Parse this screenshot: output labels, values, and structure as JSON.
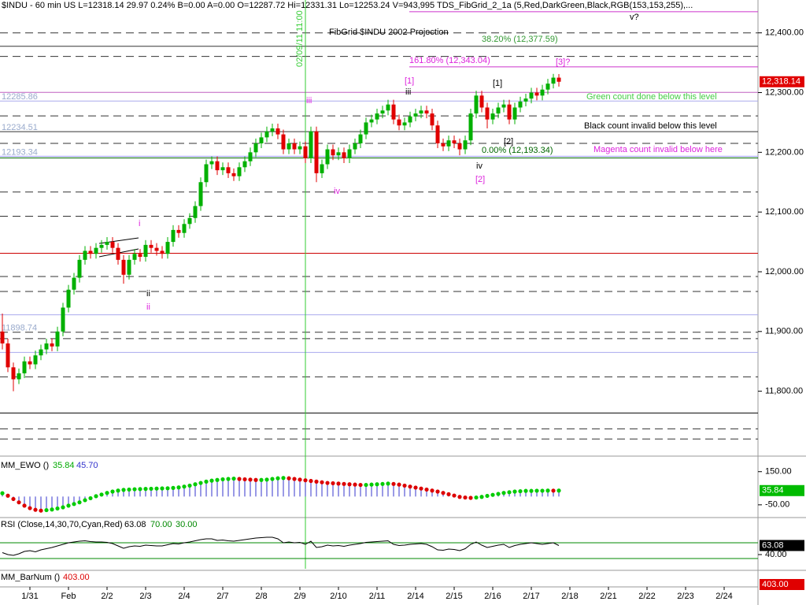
{
  "chart_data": [
    {
      "type": "candlestick",
      "title": "$INDU - 60 min  US  L=12318.14  29.97  0.24%  B=0.00  A=0.00  O=12287.72  Hi=12331.31  Lo=12253.24  V=943,995  TDS_FibGrid_2_1a (5,Red,DarkGreen,Black,RGB(153,153,255),...",
      "open": [
        11900,
        11880,
        11840,
        11820,
        11830,
        11850,
        11845,
        11860,
        11870,
        11880,
        11875,
        11900,
        11940,
        11970,
        11990,
        12020,
        12035,
        12030,
        12040,
        12045,
        12050,
        12040,
        12020,
        11995,
        12020,
        12030,
        12025,
        12045,
        12040,
        12035,
        12030,
        12050,
        12070,
        12065,
        12080,
        12090,
        12110,
        12150,
        12180,
        12185,
        12170,
        12175,
        12165,
        12160,
        12175,
        12185,
        12200,
        12215,
        12225,
        12235,
        12240,
        12230,
        12205,
        12215,
        12205,
        12210,
        12190,
        12235,
        12165,
        12180,
        12205,
        12195,
        12200,
        12190,
        12205,
        12215,
        12230,
        12250,
        12255,
        12265,
        12270,
        12280,
        12255,
        12245,
        12250,
        12260,
        12265,
        12270,
        12265,
        12245,
        12215,
        12210,
        12220,
        12215,
        12205,
        12220,
        12265,
        12295,
        12275,
        12255,
        12265,
        12275,
        12280,
        12255,
        12275,
        12285,
        12290,
        12300,
        12295,
        12305,
        12315,
        12325
      ],
      "high": [
        11930,
        11888,
        11848,
        11838,
        11858,
        11858,
        11868,
        11878,
        11888,
        11888,
        11908,
        11948,
        11978,
        11998,
        12028,
        12043,
        12043,
        12048,
        12053,
        12058,
        12058,
        12048,
        12028,
        12028,
        12038,
        12038,
        12053,
        12053,
        12048,
        12043,
        12058,
        12078,
        12078,
        12088,
        12098,
        12118,
        12158,
        12188,
        12193,
        12193,
        12183,
        12183,
        12173,
        12183,
        12193,
        12208,
        12223,
        12233,
        12243,
        12248,
        12248,
        12238,
        12223,
        12223,
        12218,
        12218,
        12243,
        12243,
        12188,
        12213,
        12213,
        12208,
        12208,
        12213,
        12223,
        12238,
        12258,
        12263,
        12273,
        12278,
        12288,
        12288,
        12263,
        12258,
        12268,
        12273,
        12278,
        12278,
        12273,
        12253,
        12223,
        12228,
        12228,
        12223,
        12228,
        12273,
        12303,
        12303,
        12283,
        12273,
        12283,
        12288,
        12288,
        12283,
        12293,
        12298,
        12308,
        12308,
        12313,
        12323,
        12331.31,
        12331
      ],
      "low": [
        11870,
        11832,
        11800,
        11812,
        11822,
        11837,
        11837,
        11852,
        11862,
        11867,
        11867,
        11892,
        11932,
        11962,
        11982,
        12012,
        12022,
        12022,
        12032,
        12037,
        12032,
        12012,
        11980,
        11987,
        12012,
        12017,
        12017,
        12032,
        12027,
        12022,
        12022,
        12042,
        12057,
        12057,
        12072,
        12082,
        12102,
        12142,
        12172,
        12162,
        12162,
        12157,
        12152,
        12152,
        12167,
        12177,
        12192,
        12207,
        12217,
        12227,
        12222,
        12197,
        12197,
        12197,
        12197,
        12182,
        12182,
        12150,
        12157,
        12172,
        12187,
        12187,
        12182,
        12182,
        12197,
        12207,
        12222,
        12242,
        12247,
        12257,
        12262,
        12247,
        12237,
        12237,
        12242,
        12252,
        12257,
        12257,
        12237,
        12207,
        12202,
        12202,
        12207,
        12195,
        12197,
        12212,
        12257,
        12267,
        12240,
        12247,
        12257,
        12267,
        12247,
        12247,
        12267,
        12277,
        12282,
        12287,
        12287,
        12297,
        12307,
        12310
      ],
      "close": [
        11880,
        11840,
        11820,
        11830,
        11850,
        11845,
        11860,
        11870,
        11880,
        11875,
        11900,
        11940,
        11970,
        11990,
        12020,
        12035,
        12030,
        12040,
        12045,
        12050,
        12040,
        12020,
        11995,
        12020,
        12030,
        12025,
        12045,
        12040,
        12035,
        12030,
        12050,
        12070,
        12065,
        12080,
        12090,
        12110,
        12150,
        12180,
        12185,
        12170,
        12175,
        12165,
        12160,
        12175,
        12185,
        12200,
        12215,
        12225,
        12235,
        12240,
        12230,
        12205,
        12215,
        12205,
        12210,
        12190,
        12235,
        12165,
        12180,
        12205,
        12195,
        12200,
        12190,
        12205,
        12215,
        12230,
        12250,
        12255,
        12265,
        12270,
        12280,
        12255,
        12245,
        12250,
        12260,
        12265,
        12270,
        12265,
        12245,
        12215,
        12210,
        12220,
        12215,
        12205,
        12220,
        12265,
        12295,
        12275,
        12255,
        12265,
        12275,
        12280,
        12255,
        12275,
        12285,
        12290,
        12300,
        12295,
        12305,
        12315,
        12325,
        12318.14
      ],
      "up_color": "#00b000",
      "down_color": "#e00000",
      "xlim": [
        -0.43,
        137.14
      ],
      "xticks": [
        {
          "value": 5,
          "label": "1/31"
        },
        {
          "value": 12,
          "label": "Feb"
        },
        {
          "value": 19,
          "label": "2/2"
        },
        {
          "value": 26,
          "label": "2/3"
        },
        {
          "value": 33,
          "label": "2/4"
        },
        {
          "value": 40,
          "label": "2/7"
        },
        {
          "value": 47,
          "label": "2/8"
        },
        {
          "value": 54,
          "label": "2/9"
        },
        {
          "value": 61,
          "label": "2/10"
        },
        {
          "value": 68,
          "label": "2/11"
        },
        {
          "value": 75,
          "label": "2/14"
        },
        {
          "value": 82,
          "label": "2/15"
        },
        {
          "value": 89,
          "label": "2/16"
        },
        {
          "value": 96,
          "label": "2/17"
        },
        {
          "value": 103,
          "label": "2/18"
        },
        {
          "value": 110,
          "label": "2/21"
        },
        {
          "value": 117,
          "label": "2/22"
        },
        {
          "value": 124,
          "label": "2/23"
        },
        {
          "value": 131,
          "label": "2/24"
        }
      ],
      "ylim": [
        11694,
        12455
      ],
      "yticks": [
        {
          "value": 12400,
          "label": "12,400.00"
        },
        {
          "value": 12300,
          "label": "12,300.00"
        },
        {
          "value": 12200,
          "label": "12,200.00"
        },
        {
          "value": 12100,
          "label": "12,100.00"
        },
        {
          "value": 12000,
          "label": "12,000.00"
        },
        {
          "value": 11900,
          "label": "11,900.00"
        },
        {
          "value": 11800,
          "label": "11,800.00"
        }
      ],
      "last": {
        "value": 12318.14,
        "label": "12,318.14"
      },
      "vline": {
        "value": 55,
        "label": "02/09/11 11:00",
        "color": "#33cc33"
      },
      "levels": [
        {
          "value": 12435.4,
          "color": "#cc33cc",
          "dash": false,
          "labeled": false
        },
        {
          "value": 12400,
          "color": "#333333",
          "dash": true,
          "labeled": false
        },
        {
          "value": 12377.59,
          "color": "#333333",
          "dash": false,
          "labeled": false
        },
        {
          "value": 12360.6,
          "color": "#333333",
          "dash": true,
          "labeled": false
        },
        {
          "value": 12343.04,
          "color": "#cc33cc",
          "dash": false,
          "labeled": false
        },
        {
          "value": 12300.3,
          "color": "#c060c0",
          "dash": false,
          "labeled": false
        },
        {
          "value": 12285.86,
          "color": "#aaaaee",
          "dash": false,
          "labeled": true
        },
        {
          "value": 12261,
          "color": "#333333",
          "dash": true,
          "labeled": false
        },
        {
          "value": 12234.51,
          "color": "#333333",
          "dash": false,
          "labeled": true
        },
        {
          "value": 12215,
          "color": "#333333",
          "dash": true,
          "labeled": false
        },
        {
          "value": 12193.34,
          "color": "#9999ff",
          "dash": false,
          "labeled": true
        },
        {
          "value": 12190.5,
          "color": "#006600",
          "dash": false,
          "labeled": false
        },
        {
          "value": 12133.6,
          "color": "#333333",
          "dash": true,
          "labeled": false
        },
        {
          "value": 12093,
          "color": "#333333",
          "dash": true,
          "labeled": false
        },
        {
          "value": 12031,
          "color": "#cc0000",
          "dash": false,
          "labeled": false
        },
        {
          "value": 11992,
          "color": "#333333",
          "dash": true,
          "labeled": false
        },
        {
          "value": 11967,
          "color": "#333333",
          "dash": true,
          "labeled": false
        },
        {
          "value": 11928,
          "color": "#aaaaee",
          "dash": false,
          "labeled": false
        },
        {
          "value": 11898.74,
          "color": "#333333",
          "dash": true,
          "labeled": true
        },
        {
          "value": 11888,
          "color": "#333333",
          "dash": true,
          "labeled": false
        },
        {
          "value": 11865,
          "color": "#aaaaee",
          "dash": false,
          "labeled": false
        },
        {
          "value": 11824,
          "color": "#333333",
          "dash": true,
          "labeled": false
        },
        {
          "value": 11763.5,
          "color": "#000000",
          "dash": false,
          "labeled": false
        },
        {
          "value": 11737,
          "color": "#333333",
          "dash": true,
          "labeled": false
        },
        {
          "value": 11720,
          "color": "#333333",
          "dash": true,
          "labeled": false
        }
      ],
      "annotations": [
        "FibGrid $INDU 2002 Projection",
        "38.20% (12,377.59)",
        "161.80% (12,343.04)",
        "[3]?",
        "v?",
        "[1]",
        "iii",
        "[1]",
        "iii",
        "Green count done below this level",
        "Black count invalid below this level",
        "0.00% (12,193.34)",
        "Magenta count invalid below here",
        "[2]",
        "iv",
        "[2]",
        "iv",
        "i",
        "ii",
        "ii"
      ]
    },
    {
      "type": "dot",
      "title": "MM_EWO ()",
      "header_values": [
        35.84,
        {
          "value": 45.7,
          "label": "45.70"
        }
      ],
      "values": [
        20,
        5,
        -15,
        -35,
        -55,
        -70,
        -80,
        -85,
        -82,
        -78,
        -72,
        -65,
        -55,
        -45,
        -35,
        -22,
        -10,
        2,
        12,
        22,
        30,
        36,
        40,
        42,
        44,
        45,
        46,
        47,
        48,
        49,
        50,
        52,
        55,
        60,
        66,
        74,
        82,
        90,
        96,
        100,
        104,
        106,
        108,
        106,
        104,
        102,
        100,
        100,
        102,
        106,
        110,
        112,
        110,
        106,
        102,
        98,
        94,
        90,
        86,
        82,
        80,
        78,
        76,
        74,
        72,
        70,
        70,
        72,
        74,
        76,
        78,
        76,
        72,
        66,
        60,
        54,
        48,
        42,
        36,
        30,
        22,
        14,
        6,
        -2,
        -6,
        -8,
        -6,
        -2,
        4,
        10,
        16,
        22,
        26,
        30,
        32,
        34,
        34,
        35,
        35,
        36,
        35.5,
        35.84
      ],
      "up_color": "#00cc00",
      "down_color": "#dd0000",
      "bar_color": "#3333cc",
      "ylim": [
        -122,
        220
      ],
      "yticks": [
        {
          "value": 150,
          "label": "150.00"
        },
        {
          "value": -50,
          "label": "-50.00"
        }
      ]
    },
    {
      "type": "line",
      "title": "RSI (Close,14,30,70,Cyan,Red)",
      "header_values": [
        63.08,
        {
          "value": 70,
          "label": "70.00"
        },
        {
          "value": 30,
          "label": "30.00"
        }
      ],
      "values": [
        45,
        40,
        38,
        42,
        48,
        50,
        47,
        52,
        55,
        58,
        62,
        66,
        70,
        72,
        74,
        75,
        73,
        72,
        72,
        71,
        68,
        62,
        56,
        60,
        62,
        61,
        64,
        63,
        62,
        62,
        65,
        68,
        67,
        70,
        72,
        75,
        78,
        80,
        80,
        76,
        77,
        75,
        74,
        76,
        78,
        80,
        82,
        83,
        84,
        84,
        80,
        70,
        72,
        70,
        71,
        66,
        74,
        58,
        60,
        64,
        62,
        63,
        61,
        64,
        66,
        68,
        71,
        72,
        73,
        74,
        75,
        66,
        63,
        64,
        66,
        67,
        68,
        66,
        60,
        52,
        51,
        54,
        53,
        50,
        55,
        66,
        72,
        64,
        58,
        61,
        64,
        66,
        58,
        63,
        66,
        68,
        70,
        68,
        66,
        68,
        70,
        63.08
      ],
      "color": "#000000",
      "level_color": "#008800",
      "levels": [
        70,
        30
      ],
      "ylim": [
        4,
        128
      ],
      "yticks": [
        {
          "value": 40,
          "label": "40.00"
        }
      ]
    },
    {
      "type": "indicator",
      "title": "MM_BarNum ()",
      "value": {
        "value": 403,
        "label": "403.00"
      }
    }
  ]
}
